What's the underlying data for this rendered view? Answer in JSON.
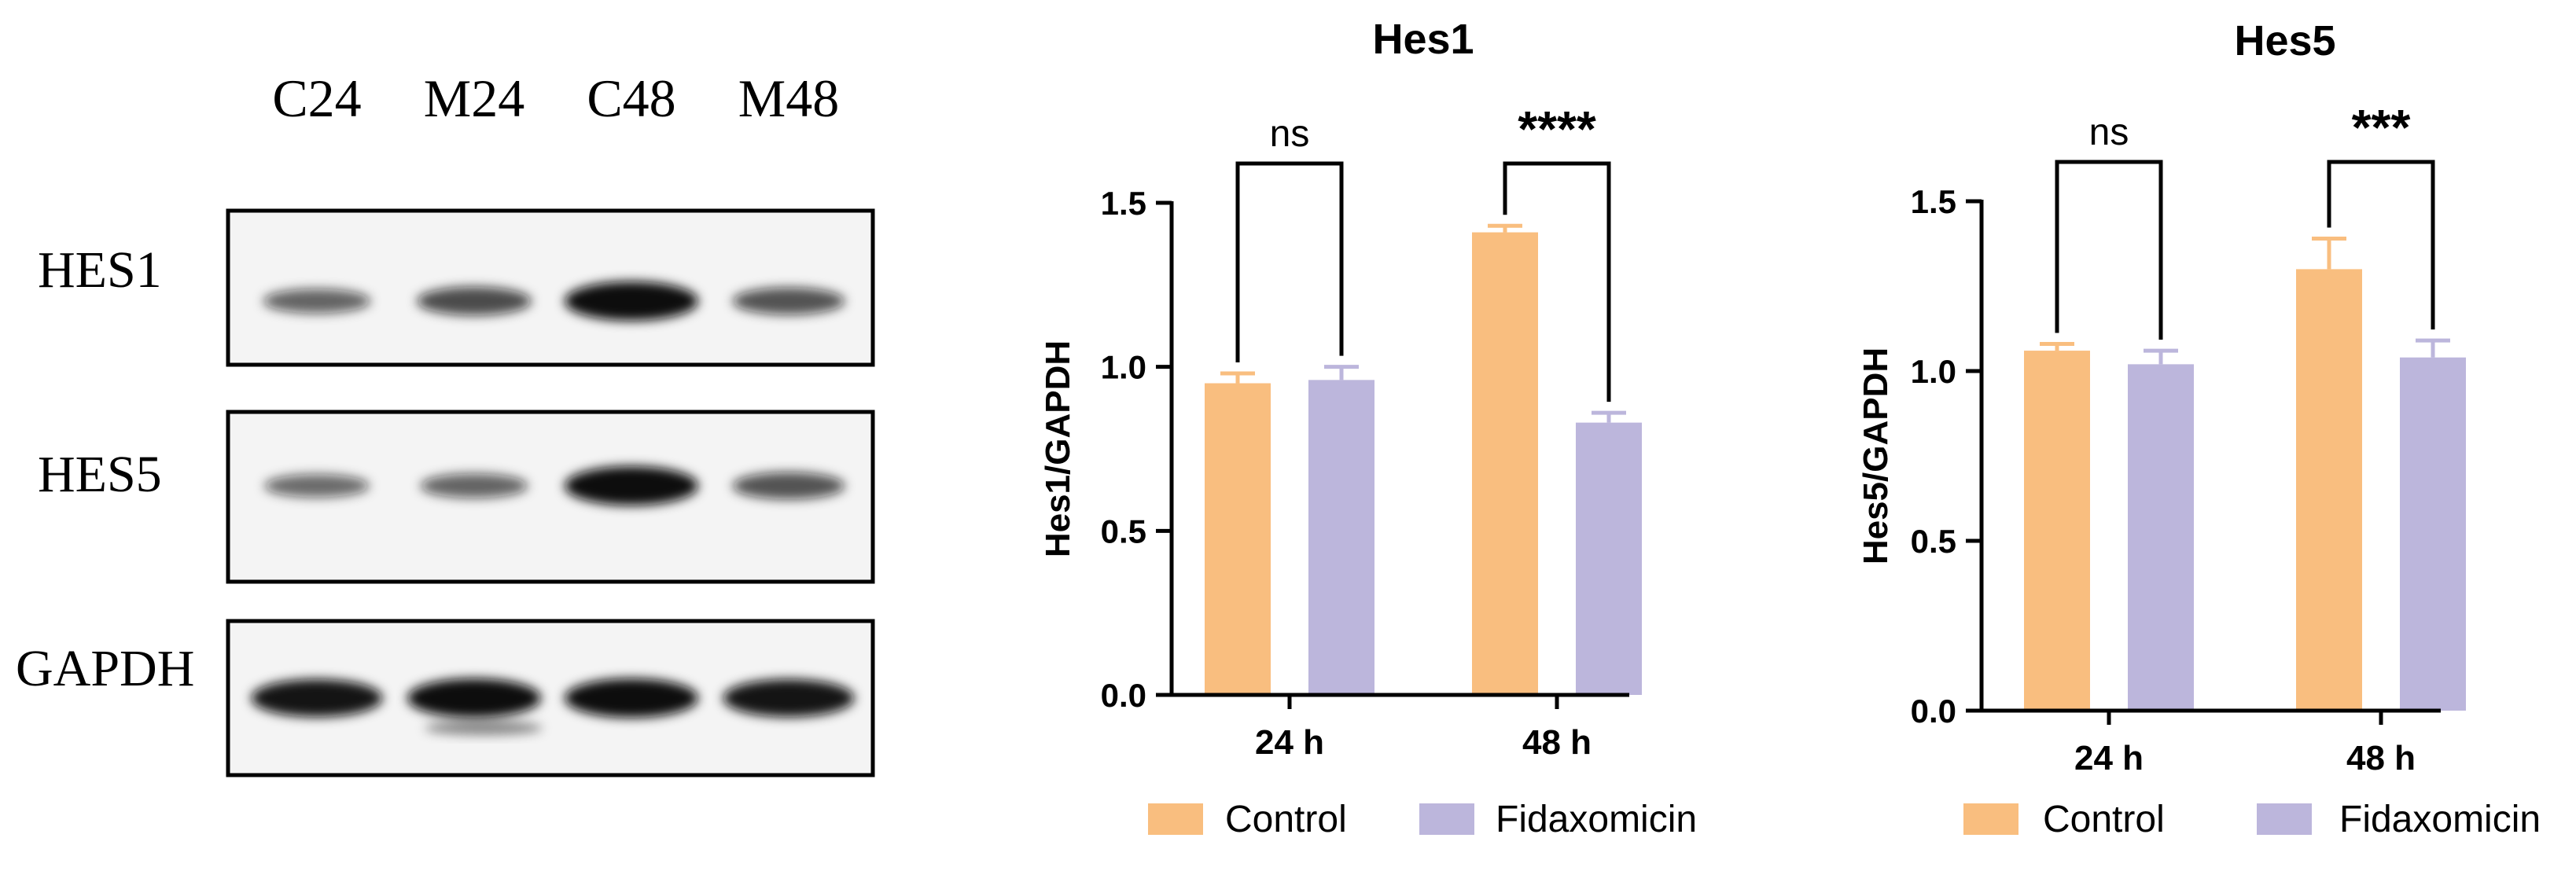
{
  "blot": {
    "lanes": [
      "C24",
      "M24",
      "C48",
      "M48"
    ],
    "bands": [
      {
        "label": "HES1",
        "intensity": [
          0.45,
          0.6,
          1.0,
          0.55
        ]
      },
      {
        "label": "HES5",
        "intensity": [
          0.4,
          0.45,
          1.0,
          0.55
        ]
      },
      {
        "label": "GAPDH",
        "intensity": [
          0.95,
          1.0,
          1.0,
          0.95
        ]
      }
    ]
  },
  "chart_data": [
    {
      "type": "bar",
      "title": "Hes1",
      "ylabel": "Hes1/GAPDH",
      "xlabel": "",
      "ylim": [
        0,
        1.5
      ],
      "yticks": [
        0.0,
        0.5,
        1.0,
        1.5
      ],
      "ytick_labels": [
        "0.0",
        "0.5",
        "1.0",
        "1.5"
      ],
      "categories": [
        "24 h",
        "48 h"
      ],
      "series": [
        {
          "name": "Control",
          "values": [
            0.95,
            1.41
          ],
          "errors": [
            0.03,
            0.02
          ]
        },
        {
          "name": "Fidaxomicin",
          "values": [
            0.96,
            0.83
          ],
          "errors": [
            0.04,
            0.03
          ]
        }
      ],
      "significance": [
        "ns",
        "****"
      ],
      "legend": "bottom",
      "grid": false
    },
    {
      "type": "bar",
      "title": "Hes5",
      "ylabel": "Hes5/GAPDH",
      "xlabel": "",
      "ylim": [
        0,
        1.5
      ],
      "yticks": [
        0.0,
        0.5,
        1.0,
        1.5
      ],
      "ytick_labels": [
        "0.0",
        "0.5",
        "1.0",
        "1.5"
      ],
      "categories": [
        "24 h",
        "48 h"
      ],
      "series": [
        {
          "name": "Control",
          "values": [
            1.06,
            1.3
          ],
          "errors": [
            0.02,
            0.09
          ]
        },
        {
          "name": "Fidaxomicin",
          "values": [
            1.02,
            1.04
          ],
          "errors": [
            0.04,
            0.05
          ]
        }
      ],
      "significance": [
        "ns",
        "***"
      ],
      "legend": "bottom",
      "grid": false
    }
  ],
  "colors": {
    "control": "#f9be7f",
    "fidaxomicin": "#bcb6dc",
    "axis": "#000000",
    "band": "#0b0b0b",
    "membrane": "#f4f4f4"
  }
}
